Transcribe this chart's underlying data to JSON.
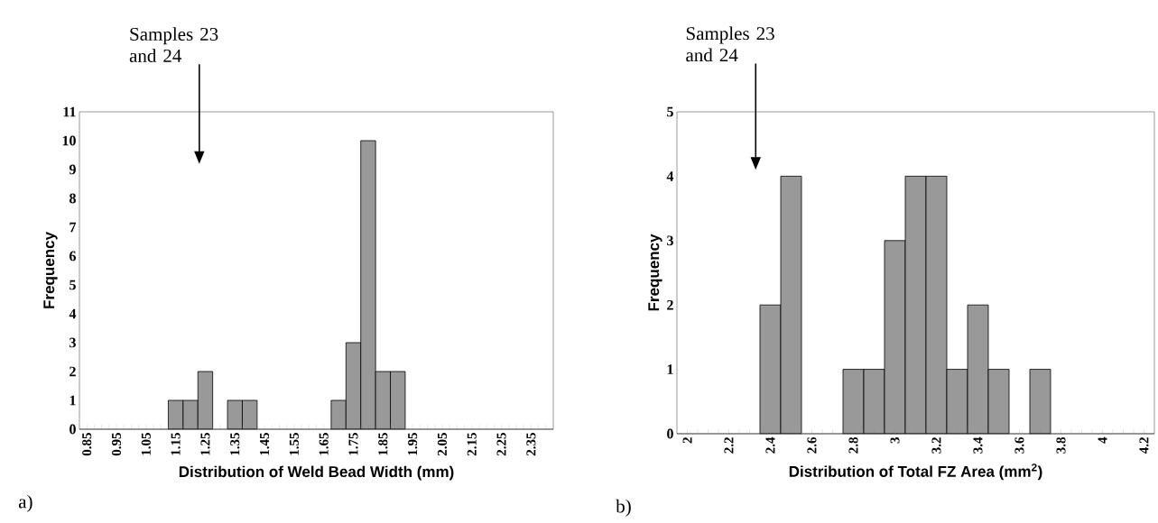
{
  "chart_data": [
    {
      "type": "histogram",
      "xlabel": "Distribution of Weld Bead Width (mm)",
      "ylabel": "Frequency",
      "color": "#999999",
      "bins": [
        0.825,
        0.875,
        0.925,
        0.975,
        1.025,
        1.075,
        1.125,
        1.175,
        1.225,
        1.275,
        1.325,
        1.375,
        1.425,
        1.475,
        1.525,
        1.575,
        1.625,
        1.675,
        1.725,
        1.775,
        1.825,
        1.875,
        1.925,
        1.975,
        2.025,
        2.075,
        2.125,
        2.175,
        2.225,
        2.275,
        2.325,
        2.375,
        2.425
      ],
      "values": [
        0,
        0,
        0,
        0,
        0,
        0,
        1,
        1,
        2,
        0,
        1,
        1,
        0,
        0,
        0,
        0,
        0,
        1,
        3,
        10,
        2,
        2,
        0,
        0,
        0,
        0,
        0,
        0,
        0,
        0,
        0,
        0
      ],
      "xlim": [
        0.825,
        2.425
      ],
      "ylim": [
        0,
        11
      ],
      "yticks": [
        0,
        1,
        2,
        3,
        4,
        5,
        6,
        7,
        8,
        9,
        10,
        11
      ],
      "xticks": [
        0.85,
        {
          "value": 0.875,
          "label": null
        },
        {
          "value": 0.9,
          "label": null
        },
        {
          "value": 0.925,
          "label": null
        },
        0.95,
        {
          "value": 0.975,
          "label": null
        },
        {
          "value": 1.0,
          "label": null
        },
        {
          "value": 1.025,
          "label": null
        },
        1.05,
        {
          "value": 1.075,
          "label": null
        },
        {
          "value": 1.1,
          "label": null
        },
        {
          "value": 1.125,
          "label": null
        },
        1.15,
        {
          "value": 1.175,
          "label": null
        },
        {
          "value": 1.2,
          "label": null
        },
        {
          "value": 1.225,
          "label": null
        },
        1.25,
        {
          "value": 1.275,
          "label": null
        },
        {
          "value": 1.3,
          "label": null
        },
        {
          "value": 1.325,
          "label": null
        },
        1.35,
        {
          "value": 1.375,
          "label": null
        },
        {
          "value": 1.4,
          "label": null
        },
        {
          "value": 1.425,
          "label": null
        },
        1.45,
        {
          "value": 1.475,
          "label": null
        },
        {
          "value": 1.5,
          "label": null
        },
        {
          "value": 1.525,
          "label": null
        },
        1.55,
        {
          "value": 1.575,
          "label": null
        },
        {
          "value": 1.6,
          "label": null
        },
        {
          "value": 1.625,
          "label": null
        },
        1.65,
        {
          "value": 1.675,
          "label": null
        },
        {
          "value": 1.7,
          "label": null
        },
        {
          "value": 1.725,
          "label": null
        },
        1.75,
        {
          "value": 1.775,
          "label": null
        },
        {
          "value": 1.8,
          "label": null
        },
        {
          "value": 1.825,
          "label": null
        },
        1.85,
        {
          "value": 1.875,
          "label": null
        },
        {
          "value": 1.9,
          "label": null
        },
        {
          "value": 1.925,
          "label": null
        },
        1.95,
        {
          "value": 1.975,
          "label": null
        },
        {
          "value": 2.0,
          "label": null
        },
        {
          "value": 2.025,
          "label": null
        },
        2.05,
        {
          "value": 2.075,
          "label": null
        },
        {
          "value": 2.1,
          "label": null
        },
        {
          "value": 2.125,
          "label": null
        },
        2.15,
        {
          "value": 2.175,
          "label": null
        },
        {
          "value": 2.2,
          "label": null
        },
        {
          "value": 2.225,
          "label": null
        },
        2.25,
        {
          "value": 2.275,
          "label": null
        },
        {
          "value": 2.3,
          "label": null
        },
        {
          "value": 2.325,
          "label": null
        },
        2.35,
        {
          "value": 2.375,
          "label": null
        },
        {
          "value": 2.4,
          "label": null
        }
      ],
      "annotations": [
        "Samples 23 and 24",
        "a)"
      ]
    },
    {
      "type": "histogram",
      "xlabel": "Distribution of Total FZ Area (mm$^{2}$)",
      "ylabel": "Frequency",
      "color": "#999999",
      "bins": [
        1.95,
        2.05,
        2.15,
        2.25,
        2.35,
        2.45,
        2.55,
        2.65,
        2.75,
        2.85,
        2.95,
        3.05,
        3.15,
        3.25,
        3.35,
        3.45,
        3.55,
        3.65,
        3.75,
        3.85,
        3.95,
        4.05,
        4.15,
        4.25
      ],
      "values": [
        0,
        0,
        0,
        0,
        2,
        4,
        0,
        0,
        1,
        1,
        3,
        4,
        4,
        1,
        2,
        1,
        0,
        1,
        0,
        0,
        0,
        0,
        0
      ],
      "xlim": [
        1.95,
        4.25
      ],
      "ylim": [
        0,
        5
      ],
      "yticks": [
        0,
        1,
        2,
        3,
        4,
        5
      ],
      "xticks": [
        2,
        {
          "value": 2.05,
          "label": null
        },
        {
          "value": 2.1,
          "label": null
        },
        {
          "value": 2.15,
          "label": null
        },
        2.2,
        {
          "value": 2.25,
          "label": null
        },
        {
          "value": 2.3,
          "label": null
        },
        {
          "value": 2.35,
          "label": null
        },
        2.4,
        {
          "value": 2.45,
          "label": null
        },
        {
          "value": 2.5,
          "label": null
        },
        {
          "value": 2.55,
          "label": null
        },
        2.6,
        {
          "value": 2.65,
          "label": null
        },
        {
          "value": 2.7,
          "label": null
        },
        {
          "value": 2.75,
          "label": null
        },
        2.8,
        {
          "value": 2.85,
          "label": null
        },
        {
          "value": 2.9,
          "label": null
        },
        {
          "value": 2.95,
          "label": null
        },
        3,
        {
          "value": 3.05,
          "label": null
        },
        {
          "value": 3.1,
          "label": null
        },
        {
          "value": 3.15,
          "label": null
        },
        3.2,
        {
          "value": 3.25,
          "label": null
        },
        {
          "value": 3.3,
          "label": null
        },
        {
          "value": 3.35,
          "label": null
        },
        3.4,
        {
          "value": 3.45,
          "label": null
        },
        {
          "value": 3.5,
          "label": null
        },
        {
          "value": 3.55,
          "label": null
        },
        3.6,
        {
          "value": 3.65,
          "label": null
        },
        {
          "value": 3.7,
          "label": null
        },
        {
          "value": 3.75,
          "label": null
        },
        3.8,
        {
          "value": 3.85,
          "label": null
        },
        {
          "value": 3.9,
          "label": null
        },
        {
          "value": 3.95,
          "label": null
        },
        4,
        {
          "value": 4.05,
          "label": null
        },
        {
          "value": 4.1,
          "label": null
        },
        {
          "value": 4.15,
          "label": null
        },
        4.2
      ],
      "annotations": [
        "Samples 23 and 24",
        "b)"
      ]
    }
  ]
}
